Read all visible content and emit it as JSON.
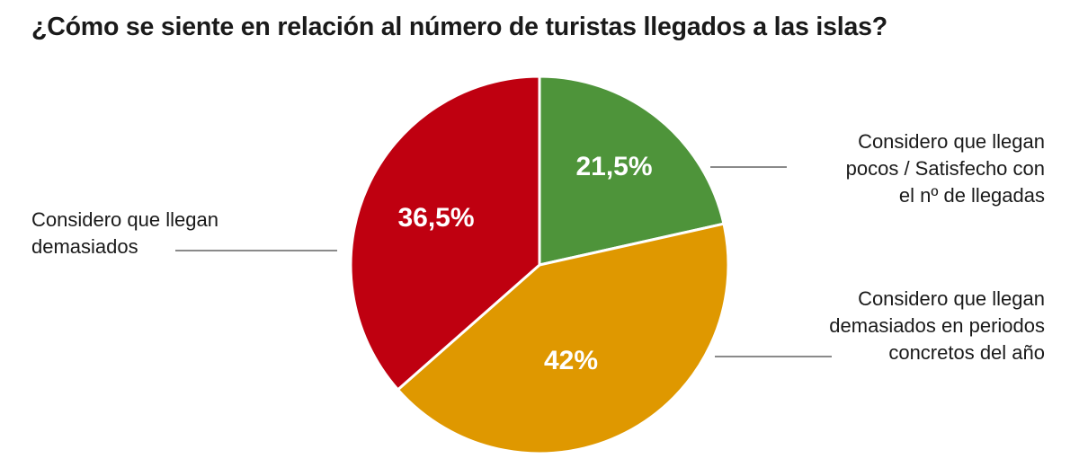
{
  "chart_data": {
    "type": "pie",
    "title": "¿Cómo se siente en relación al número de turistas llegados a las islas?",
    "slices": [
      {
        "label": "Considero que llegan pocos / Satisfecho con el nº de llegadas",
        "lines": [
          "Considero que llegan",
          "pocos / Satisfecho con",
          "el nº de llegadas"
        ],
        "value": 21.5,
        "value_label": "21,5%",
        "color": "#4e943a"
      },
      {
        "label": "Considero que llegan demasiados en periodos concretos del año",
        "lines": [
          "Considero que llegan",
          "demasiados en periodos",
          "concretos del año"
        ],
        "value": 42,
        "value_label": "42%",
        "color": "#df9800"
      },
      {
        "label": "Considero que llegan demasiados",
        "lines": [
          "Considero que llegan",
          "demasiados"
        ],
        "value": 36.5,
        "value_label": "36,5%",
        "color": "#bf0010"
      }
    ],
    "start_angle": "top",
    "direction": "clockwise"
  }
}
